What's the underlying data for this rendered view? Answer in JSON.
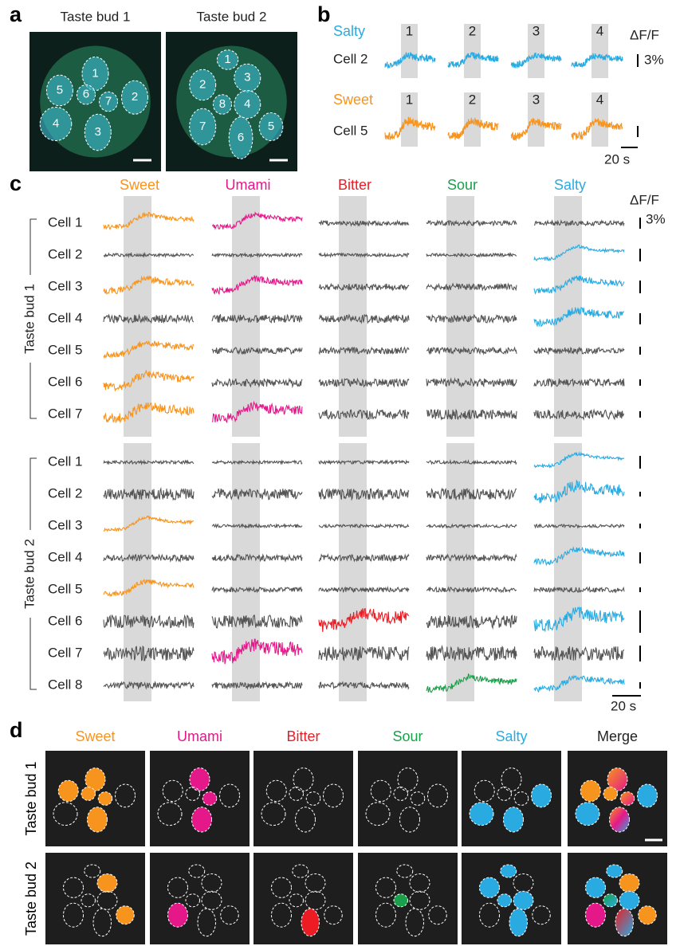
{
  "a": {
    "label": "a",
    "images": [
      {
        "title": "Taste bud 1",
        "cells": [
          "1",
          "2",
          "3",
          "4",
          "5",
          "6",
          "7"
        ]
      },
      {
        "title": "Taste bud 2",
        "cells": [
          "1",
          "2",
          "3",
          "4",
          "5",
          "6",
          "7",
          "8"
        ]
      }
    ]
  },
  "b": {
    "label": "b",
    "rows": [
      {
        "taste": "Salty",
        "color": "#29abe2",
        "cell": "Cell 2",
        "trials": [
          "1",
          "2",
          "3",
          "4"
        ]
      },
      {
        "taste": "Sweet",
        "color": "#f7941d",
        "cell": "Cell 5",
        "trials": [
          "1",
          "2",
          "3",
          "4"
        ]
      }
    ],
    "scale_label": "ΔF/F",
    "scale_value": "3%",
    "time_scale": "20 s"
  },
  "c": {
    "label": "c",
    "tastes": [
      {
        "name": "Sweet",
        "color": "#f7941d"
      },
      {
        "name": "Umami",
        "color": "#e5188a"
      },
      {
        "name": "Bitter",
        "color": "#ed1c24"
      },
      {
        "name": "Sour",
        "color": "#1aa04b"
      },
      {
        "name": "Salty",
        "color": "#29abe2"
      }
    ],
    "groups": [
      {
        "name": "Taste bud 1",
        "cells": [
          {
            "label": "Cell 1",
            "responses": [
              true,
              true,
              false,
              false,
              false
            ]
          },
          {
            "label": "Cell 2",
            "responses": [
              false,
              false,
              false,
              false,
              true
            ]
          },
          {
            "label": "Cell 3",
            "responses": [
              true,
              true,
              false,
              false,
              true
            ]
          },
          {
            "label": "Cell 4",
            "responses": [
              false,
              false,
              false,
              false,
              true
            ]
          },
          {
            "label": "Cell 5",
            "responses": [
              true,
              false,
              false,
              false,
              false
            ]
          },
          {
            "label": "Cell 6",
            "responses": [
              true,
              false,
              false,
              false,
              false
            ]
          },
          {
            "label": "Cell 7",
            "responses": [
              true,
              true,
              false,
              false,
              false
            ]
          }
        ]
      },
      {
        "name": "Taste bud 2",
        "cells": [
          {
            "label": "Cell 1",
            "responses": [
              false,
              false,
              false,
              false,
              true
            ]
          },
          {
            "label": "Cell 2",
            "responses": [
              false,
              false,
              false,
              false,
              true
            ]
          },
          {
            "label": "Cell 3",
            "responses": [
              true,
              false,
              false,
              false,
              false
            ]
          },
          {
            "label": "Cell 4",
            "responses": [
              false,
              false,
              false,
              false,
              true
            ]
          },
          {
            "label": "Cell 5",
            "responses": [
              true,
              false,
              false,
              false,
              false
            ]
          },
          {
            "label": "Cell 6",
            "responses": [
              false,
              false,
              true,
              false,
              true
            ]
          },
          {
            "label": "Cell 7",
            "responses": [
              false,
              true,
              false,
              false,
              false
            ]
          },
          {
            "label": "Cell 8",
            "responses": [
              false,
              false,
              false,
              true,
              true
            ]
          }
        ]
      }
    ],
    "scale_label": "ΔF/F",
    "scale_value": "3%",
    "time_scale": "20 s"
  },
  "d": {
    "label": "d",
    "columns": [
      "Sweet",
      "Umami",
      "Bitter",
      "Sour",
      "Salty",
      "Merge"
    ],
    "rows": [
      "Taste bud 1",
      "Taste bud 2"
    ]
  }
}
